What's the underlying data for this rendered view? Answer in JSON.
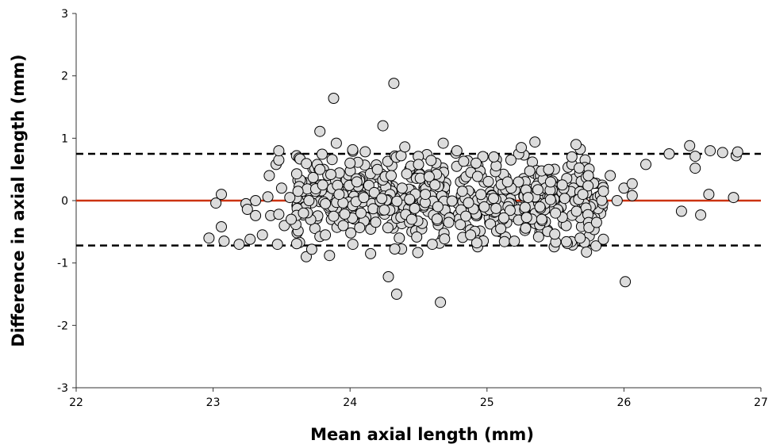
{
  "chart_data": {
    "type": "scatter",
    "title": "",
    "xlabel": "Mean axial length (mm)",
    "ylabel": "Difference in axial length (mm)",
    "xlim": [
      22,
      27
    ],
    "ylim": [
      -3,
      3
    ],
    "x_ticks": [
      "22",
      "23",
      "24",
      "25",
      "26",
      "27"
    ],
    "y_ticks": [
      "3",
      "2",
      "1",
      "0",
      "-1",
      "-2",
      "-3"
    ],
    "grid": false,
    "legend": "none",
    "reference_lines": [
      {
        "label": "mean difference",
        "y": 0.0,
        "color": "#cc3311",
        "style": "solid"
      },
      {
        "label": "upper limit of agreement",
        "y": 0.75,
        "color": "#000000",
        "style": "dashed"
      },
      {
        "label": "lower limit of agreement",
        "y": -0.72,
        "color": "#000000",
        "style": "dashed"
      }
    ],
    "marker_fill": "#dcdcdc",
    "marker_edge": "#000000",
    "points": [
      [
        22.97,
        -0.6
      ],
      [
        23.02,
        -0.04
      ],
      [
        23.06,
        0.1
      ],
      [
        23.06,
        -0.42
      ],
      [
        23.08,
        -0.65
      ],
      [
        23.19,
        -0.7
      ],
      [
        23.24,
        -0.05
      ],
      [
        23.25,
        -0.14
      ],
      [
        23.27,
        -0.62
      ],
      [
        23.31,
        -0.24
      ],
      [
        23.31,
        0.0
      ],
      [
        23.36,
        -0.55
      ],
      [
        23.4,
        0.06
      ],
      [
        23.41,
        0.4
      ],
      [
        23.42,
        -0.24
      ],
      [
        23.46,
        0.58
      ],
      [
        23.48,
        0.65
      ],
      [
        23.48,
        0.8
      ],
      [
        23.5,
        0.2
      ],
      [
        23.47,
        -0.7
      ],
      [
        23.48,
        -0.22
      ],
      [
        23.52,
        -0.4
      ],
      [
        23.56,
        0.05
      ],
      [
        23.57,
        -0.3
      ],
      [
        23.61,
        -0.69
      ],
      [
        23.62,
        0.15
      ],
      [
        23.66,
        -0.2
      ],
      [
        23.68,
        -0.9
      ],
      [
        23.7,
        0.0
      ],
      [
        23.72,
        -0.78
      ],
      [
        23.75,
        0.19
      ],
      [
        23.76,
        0.58
      ],
      [
        23.78,
        0.5
      ],
      [
        23.78,
        1.11
      ],
      [
        23.8,
        0.25
      ],
      [
        23.82,
        -0.55
      ],
      [
        23.82,
        -0.05
      ],
      [
        23.85,
        -0.88
      ],
      [
        23.86,
        0.42
      ],
      [
        23.88,
        1.64
      ],
      [
        23.88,
        -0.25
      ],
      [
        23.9,
        0.92
      ],
      [
        23.92,
        0.1
      ],
      [
        23.95,
        -0.4
      ],
      [
        24.0,
        0.6
      ],
      [
        24.02,
        -0.7
      ],
      [
        24.05,
        0.3
      ],
      [
        24.08,
        -0.2
      ],
      [
        24.1,
        0.05
      ],
      [
        24.15,
        -0.85
      ],
      [
        24.2,
        0.5
      ],
      [
        24.24,
        1.2
      ],
      [
        24.25,
        -0.15
      ],
      [
        24.28,
        -1.22
      ],
      [
        24.3,
        0.4
      ],
      [
        24.32,
        1.88
      ],
      [
        24.34,
        -1.5
      ],
      [
        24.36,
        -0.6
      ],
      [
        24.38,
        0.2
      ],
      [
        24.4,
        0.86
      ],
      [
        24.45,
        -0.3
      ],
      [
        24.5,
        0.58
      ],
      [
        24.55,
        0.1
      ],
      [
        24.6,
        -0.7
      ],
      [
        24.62,
        0.25
      ],
      [
        24.66,
        -1.63
      ],
      [
        24.68,
        0.92
      ],
      [
        24.72,
        -0.35
      ],
      [
        24.78,
        0.8
      ],
      [
        24.82,
        0.15
      ],
      [
        24.88,
        -0.55
      ],
      [
        24.92,
        0.6
      ],
      [
        24.98,
        -0.1
      ],
      [
        25.05,
        0.7
      ],
      [
        25.1,
        -0.45
      ],
      [
        25.15,
        0.3
      ],
      [
        25.2,
        -0.65
      ],
      [
        25.25,
        0.85
      ],
      [
        25.3,
        0.05
      ],
      [
        25.35,
        0.94
      ],
      [
        25.4,
        -0.3
      ],
      [
        25.45,
        0.5
      ],
      [
        25.5,
        -0.2
      ],
      [
        25.55,
        0.25
      ],
      [
        25.58,
        -0.66
      ],
      [
        25.62,
        0.7
      ],
      [
        25.65,
        0.9
      ],
      [
        25.68,
        -0.6
      ],
      [
        25.7,
        0.1
      ],
      [
        25.74,
        0.4
      ],
      [
        25.8,
        -0.35
      ],
      [
        25.85,
        0.15
      ],
      [
        25.85,
        -0.62
      ],
      [
        25.9,
        0.4
      ],
      [
        25.95,
        0.0
      ],
      [
        26.0,
        0.2
      ],
      [
        26.01,
        -1.3
      ],
      [
        26.06,
        0.08
      ],
      [
        26.06,
        0.27
      ],
      [
        26.16,
        0.58
      ],
      [
        26.33,
        0.75
      ],
      [
        26.42,
        -0.17
      ],
      [
        26.48,
        0.88
      ],
      [
        26.52,
        0.52
      ],
      [
        26.52,
        0.71
      ],
      [
        26.56,
        -0.23
      ],
      [
        26.62,
        0.1
      ],
      [
        26.63,
        0.8
      ],
      [
        26.72,
        0.77
      ],
      [
        26.8,
        0.05
      ],
      [
        26.82,
        0.72
      ],
      [
        26.83,
        0.78
      ]
    ],
    "dense_cluster": {
      "x_range": [
        23.6,
        25.85
      ],
      "y_center": 0.02,
      "y_spread": 0.33,
      "count": 560
    }
  }
}
